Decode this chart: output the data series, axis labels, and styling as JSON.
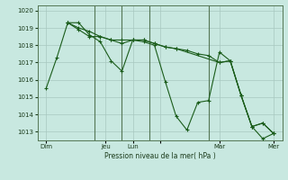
{
  "background_color": "#c8e8e0",
  "grid_color": "#a8c8c0",
  "line_color": "#1a5c1a",
  "title": "Pression niveau de la mer( hPa )",
  "ylim": [
    1012.5,
    1020.3
  ],
  "yticks": [
    1013,
    1014,
    1015,
    1016,
    1017,
    1018,
    1019,
    1020
  ],
  "xlim": [
    -0.3,
    22.3
  ],
  "xtick_positions": [
    0.5,
    6.0,
    8.5,
    11.0,
    16.5,
    21.5
  ],
  "xtick_labels": [
    "Dim",
    "Jeu",
    "Lun",
    "",
    "Mar",
    "Mer"
  ],
  "vline_x": [
    5.0,
    7.5,
    10.0,
    15.5
  ],
  "series": [
    {
      "x": [
        0.5,
        1.5,
        2.5,
        3.5,
        4.5,
        5.5,
        6.5,
        7.5,
        8.5,
        9.5,
        10.5,
        11.5,
        12.5,
        13.5,
        14.5,
        15.5,
        16.5,
        17.5,
        18.5,
        19.5,
        20.5,
        21.5
      ],
      "y": [
        1015.5,
        1017.3,
        1019.3,
        1019.3,
        1018.6,
        1018.2,
        1017.1,
        1016.5,
        1018.3,
        1018.2,
        1018.0,
        1015.9,
        1013.9,
        1013.1,
        1014.7,
        1014.8,
        1017.6,
        1017.1,
        1015.1,
        1013.3,
        1012.6,
        1012.9
      ]
    },
    {
      "x": [
        2.5,
        3.5,
        4.5,
        5.5,
        6.5,
        7.5,
        8.5,
        9.5,
        10.5,
        11.5,
        12.5,
        13.5,
        14.5,
        15.5,
        16.5,
        17.5,
        18.5,
        19.5,
        20.5,
        21.5
      ],
      "y": [
        1019.3,
        1019.0,
        1018.8,
        1018.5,
        1018.3,
        1018.1,
        1018.3,
        1018.3,
        1018.1,
        1017.9,
        1017.8,
        1017.7,
        1017.5,
        1017.4,
        1017.0,
        1017.1,
        1015.1,
        1013.3,
        1013.5,
        1012.9
      ]
    },
    {
      "x": [
        2.5,
        3.5,
        4.5,
        5.5,
        6.5,
        7.5,
        8.5,
        9.5,
        10.5,
        11.5,
        12.5,
        16.5,
        17.5,
        18.5,
        19.5,
        20.5,
        21.5
      ],
      "y": [
        1019.3,
        1018.9,
        1018.5,
        1018.5,
        1018.3,
        1018.3,
        1018.3,
        1018.3,
        1018.1,
        1017.9,
        1017.8,
        1017.0,
        1017.1,
        1015.1,
        1013.3,
        1013.5,
        1012.9
      ]
    }
  ],
  "figsize": [
    3.2,
    2.0
  ],
  "dpi": 100
}
